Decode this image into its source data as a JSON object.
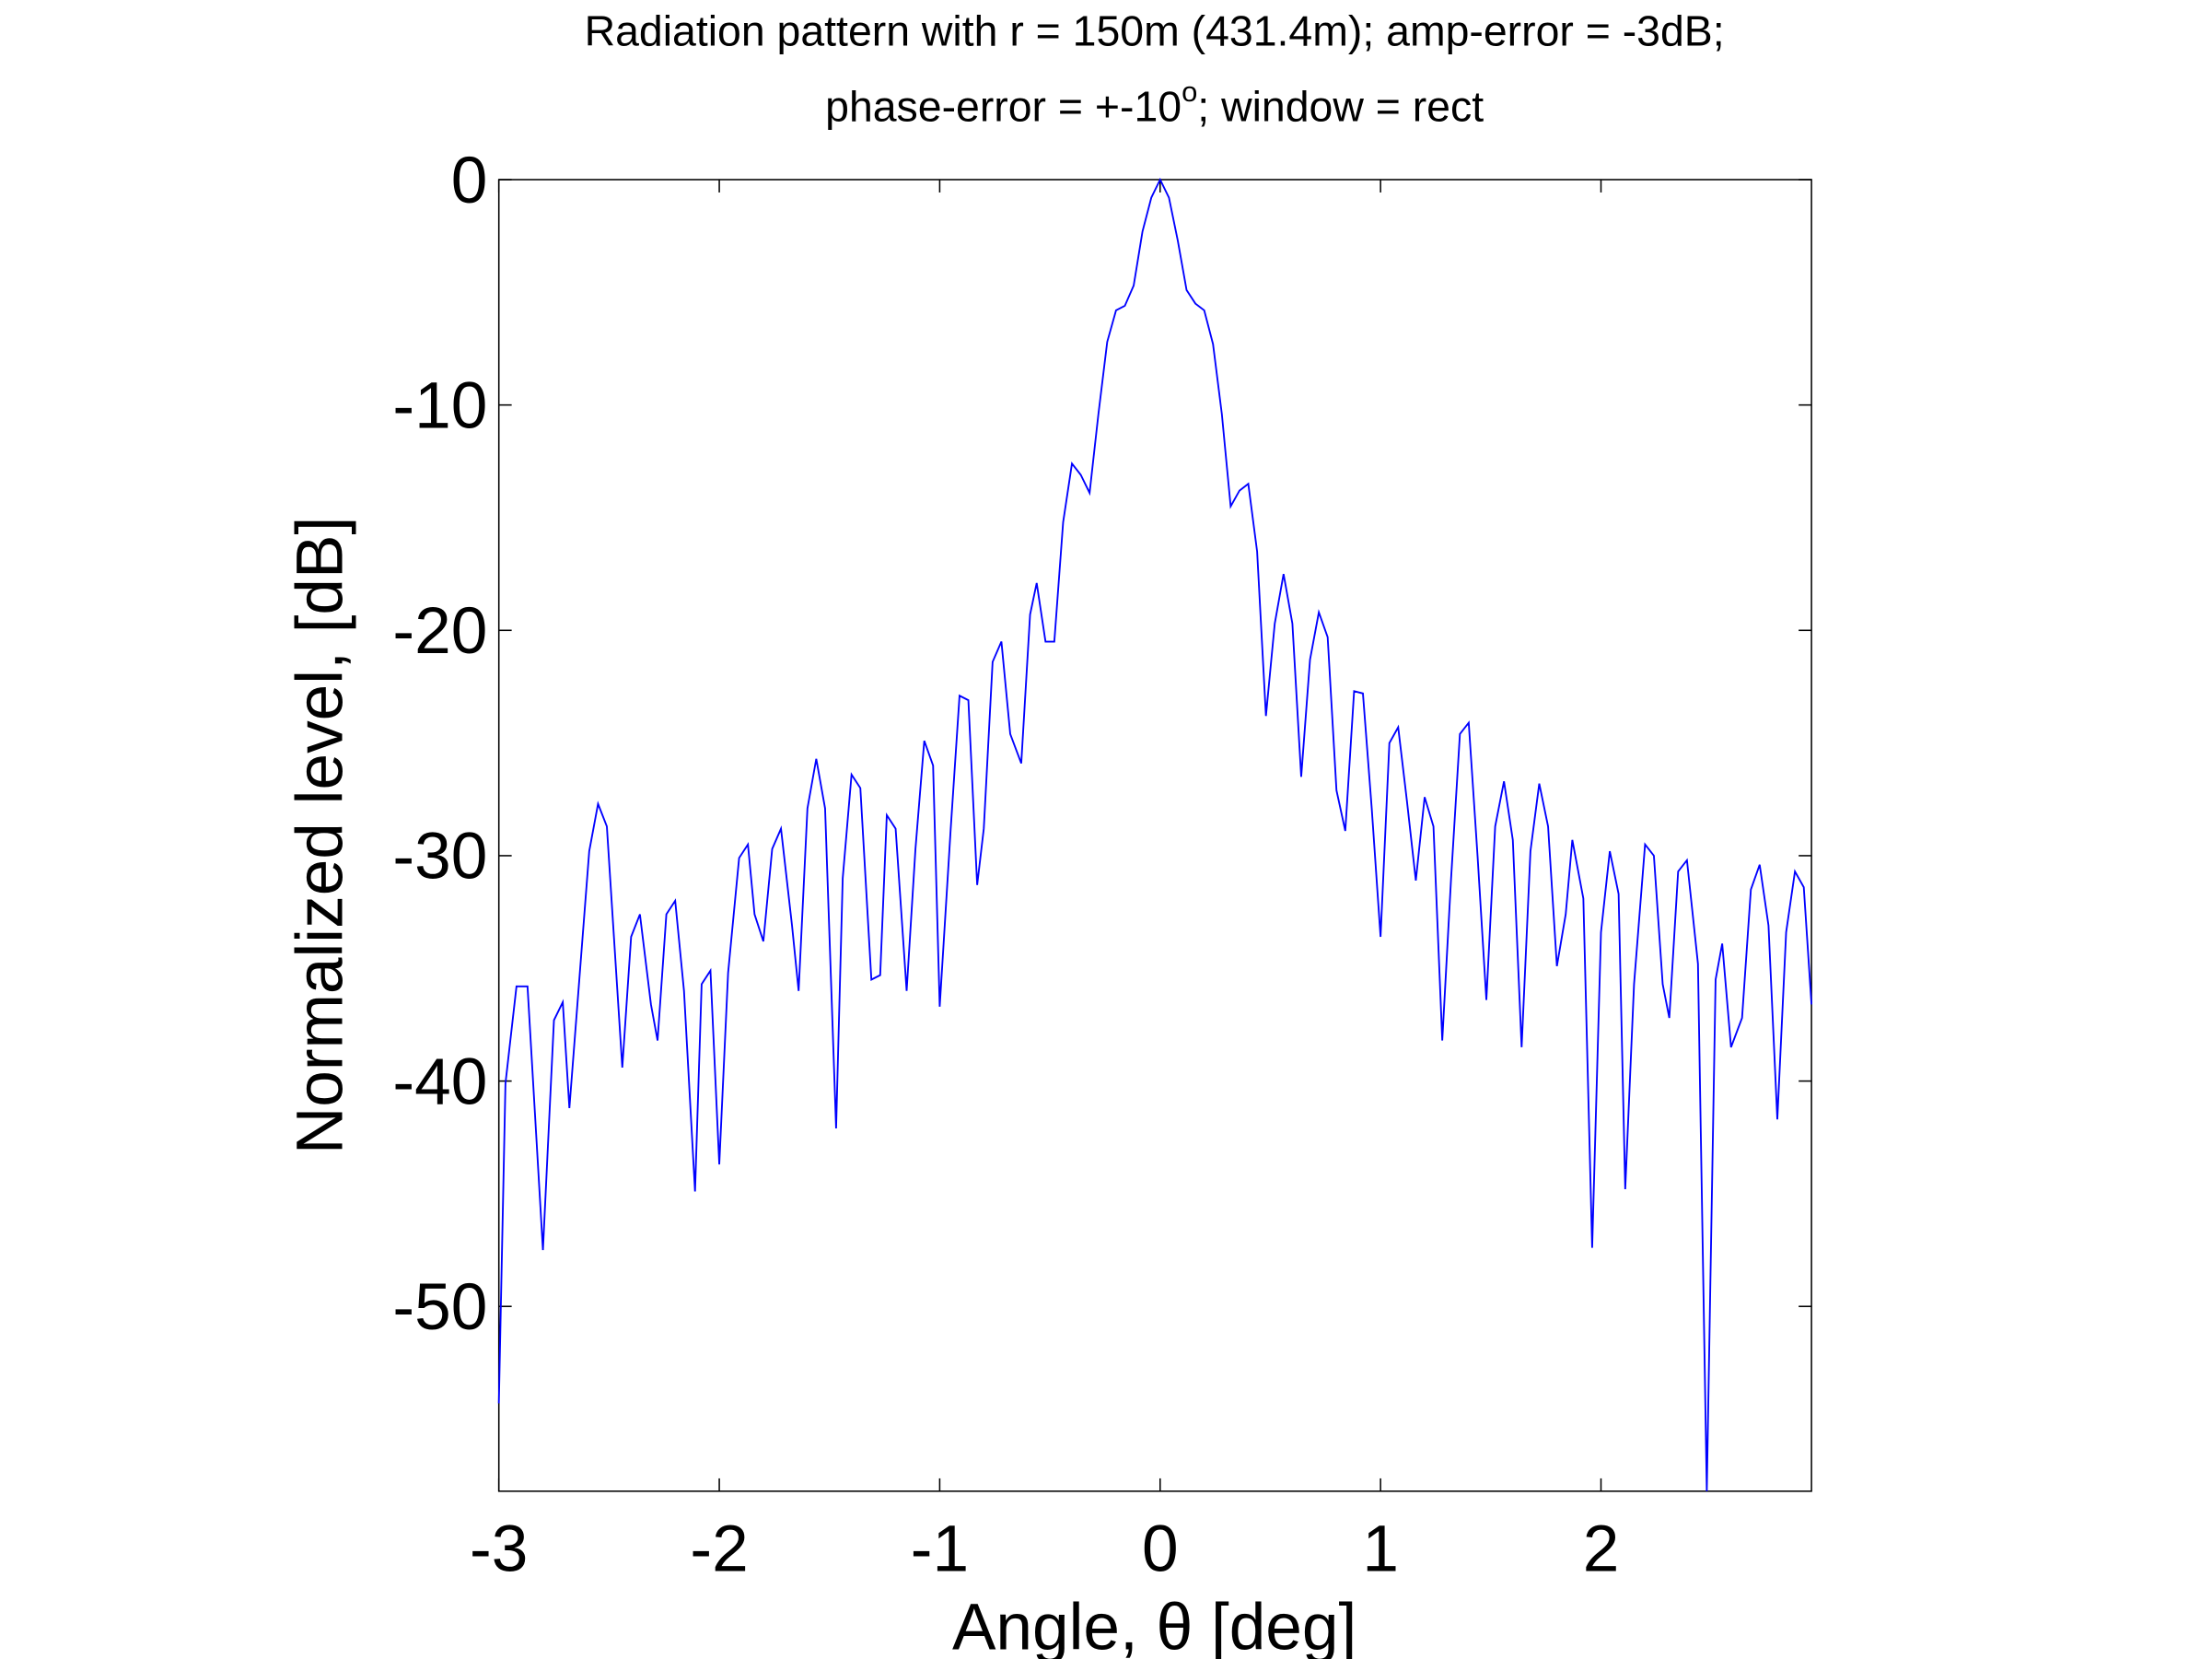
{
  "chart_data": {
    "type": "line",
    "title": {
      "line1": "Radiation pattern with r = 150m (431.4m); amp-error = -3dB;",
      "line2": [
        "phase-error = +-10",
        "o",
        "; window = rect"
      ]
    },
    "xlabel": "Angle, θ [deg]",
    "ylabel": "Normalized level, [dB]",
    "xlim": [
      -3,
      2.955
    ],
    "ylim": [
      -58.2,
      0
    ],
    "xticks": [
      -3,
      -2,
      -1,
      0,
      1,
      2
    ],
    "yticks": [
      0,
      -10,
      -20,
      -30,
      -40,
      -50
    ],
    "grid": false,
    "x": [
      -3,
      -2.97,
      -2.92,
      -2.87,
      -2.8,
      -2.75,
      -2.71,
      -2.68,
      -2.59,
      -2.55,
      -2.51,
      -2.44,
      -2.4,
      -2.36,
      -2.31,
      -2.28,
      -2.24,
      -2.2,
      -2.16,
      -2.11,
      -2.08,
      -2.04,
      -2,
      -1.96,
      -1.91,
      -1.87,
      -1.84,
      -1.8,
      -1.76,
      -1.72,
      -1.67,
      -1.64,
      -1.6,
      -1.56,
      -1.52,
      -1.47,
      -1.44,
      -1.4,
      -1.36,
      -1.31,
      -1.27,
      -1.24,
      -1.2,
      -1.15,
      -1.11,
      -1.07,
      -1.03,
      -1,
      -0.95,
      -0.91,
      -0.87,
      -0.83,
      -0.8,
      -0.76,
      -0.72,
      -0.68,
      -0.63,
      -0.59,
      -0.56,
      -0.52,
      -0.48,
      -0.44,
      -0.4,
      -0.36,
      -0.32,
      -0.28,
      -0.24,
      -0.2,
      -0.16,
      -0.12,
      -0.08,
      -0.04,
      0,
      0.04,
      0.08,
      0.12,
      0.16,
      0.2,
      0.24,
      0.28,
      0.32,
      0.36,
      0.4,
      0.44,
      0.48,
      0.52,
      0.56,
      0.6,
      0.64,
      0.68,
      0.72,
      0.76,
      0.8,
      0.84,
      0.88,
      0.92,
      0.96,
      1,
      1.04,
      1.08,
      1.12,
      1.16,
      1.2,
      1.24,
      1.28,
      1.32,
      1.36,
      1.4,
      1.44,
      1.48,
      1.52,
      1.56,
      1.6,
      1.64,
      1.68,
      1.72,
      1.76,
      1.8,
      1.84,
      1.87,
      1.92,
      1.96,
      2,
      2.04,
      2.08,
      2.11,
      2.15,
      2.2,
      2.24,
      2.28,
      2.31,
      2.35,
      2.39,
      2.44,
      2.48,
      2.52,
      2.55,
      2.59,
      2.64,
      2.68,
      2.72,
      2.76,
      2.8,
      2.84,
      2.88,
      2.92,
      2.955
    ],
    "series": [
      {
        "color": "#0000ff",
        "values": [
          -54.3,
          -40.1,
          -35.8,
          -35.8,
          -47.5,
          -37.3,
          -36.5,
          -41.2,
          -29.8,
          -27.7,
          -28.7,
          -39.4,
          -33.6,
          -32.6,
          -36.6,
          -38.2,
          -32.6,
          -32,
          -36,
          -44.9,
          -35.7,
          -35.1,
          -43.7,
          -35.2,
          -30.1,
          -29.5,
          -32.6,
          -33.8,
          -29.7,
          -28.8,
          -33.1,
          -36,
          -27.9,
          -25.7,
          -27.9,
          -42.1,
          -31,
          -26.4,
          -27,
          -35.5,
          -35.3,
          -28.2,
          -28.8,
          -36,
          -29.7,
          -24.9,
          -26,
          -36.7,
          -28.8,
          -22.9,
          -23.1,
          -31.3,
          -28.8,
          -21.4,
          -20.5,
          -24.6,
          -25.9,
          -19.3,
          -17.9,
          -20.5,
          -20.5,
          -15.2,
          -12.6,
          -13.1,
          -13.9,
          -10.4,
          -7.2,
          -5.8,
          -5.6,
          -4.7,
          -2.3,
          -0.8,
          0,
          -0.8,
          -2.7,
          -4.9,
          -5.5,
          -5.8,
          -7.3,
          -10.4,
          -14.5,
          -13.8,
          -13.5,
          -16.5,
          -23.8,
          -19.7,
          -17.5,
          -19.7,
          -26.5,
          -21.3,
          -19.2,
          -20.3,
          -27.1,
          -28.9,
          -22.7,
          -22.8,
          -27.9,
          -33.6,
          -25,
          -24.3,
          -27.6,
          -31.1,
          -27.4,
          -28.7,
          -38.2,
          -31,
          -24.6,
          -24.1,
          -30,
          -36.4,
          -28.7,
          -26.7,
          -29.3,
          -38.5,
          -29.8,
          -26.8,
          -28.7,
          -34.9,
          -32.6,
          -29.3,
          -31.9,
          -47.4,
          -33.4,
          -29.8,
          -31.7,
          -44.8,
          -35.7,
          -29.5,
          -30,
          -35.7,
          -37.2,
          -30.7,
          -30.2,
          -34.8,
          -58.2,
          -35.5,
          -33.9,
          -38.5,
          -37.2,
          -31.5,
          -30.4,
          -33.1,
          -41.7,
          -33.4,
          -30.7,
          -31.4,
          -36.6
        ]
      }
    ]
  }
}
